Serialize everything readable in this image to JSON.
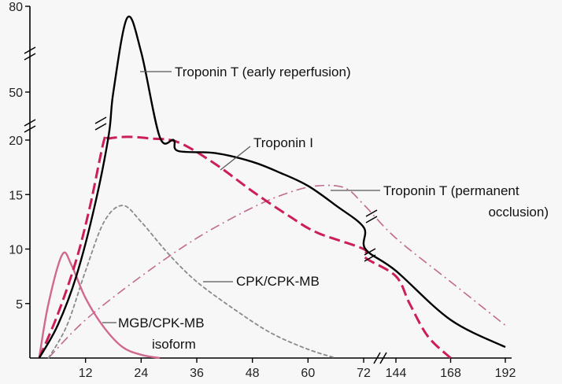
{
  "chart_data": {
    "type": "line",
    "title": "",
    "xlabel": "",
    "ylabel": "",
    "xlim": [
      0,
      192
    ],
    "ylim": [
      0,
      80
    ],
    "x_ticks": [
      "12",
      "24",
      "36",
      "48",
      "60",
      "72",
      "144",
      "168",
      "192"
    ],
    "y_ticks": [
      "5",
      "10",
      "15",
      "20",
      "50",
      "80"
    ],
    "grid": false,
    "legend": "inline callouts",
    "series": [
      {
        "name": "Troponin T (early reperfusion)",
        "name_lines": [
          "Troponin T (early reperfusion)"
        ],
        "style": "solid",
        "color": "#000000",
        "points": [
          [
            2,
            0
          ],
          [
            6,
            3
          ],
          [
            10,
            7.5
          ],
          [
            14,
            14
          ],
          [
            17,
            23
          ],
          [
            18,
            50
          ],
          [
            21,
            76
          ],
          [
            24,
            64
          ],
          [
            28,
            22
          ],
          [
            31,
            20
          ],
          [
            32,
            19
          ],
          [
            40,
            18.8
          ],
          [
            48,
            18
          ],
          [
            54,
            17
          ],
          [
            60,
            15.8
          ],
          [
            66,
            14
          ],
          [
            72,
            12
          ],
          [
            76,
            10
          ],
          [
            144,
            8
          ],
          [
            168,
            3.5
          ],
          [
            192,
            1
          ]
        ]
      },
      {
        "name": "Troponin I",
        "name_lines": [
          "Troponin I"
        ],
        "style": "dashed",
        "color": "#cc1f5a",
        "points": [
          [
            2,
            0
          ],
          [
            6,
            4
          ],
          [
            10,
            9
          ],
          [
            13,
            14
          ],
          [
            16,
            20
          ],
          [
            17,
            21
          ],
          [
            21,
            22
          ],
          [
            26,
            21
          ],
          [
            32,
            19.8
          ],
          [
            40,
            17.8
          ],
          [
            48,
            15.3
          ],
          [
            56,
            13
          ],
          [
            62,
            11.5
          ],
          [
            72,
            10
          ],
          [
            76,
            9.2
          ],
          [
            144,
            7.5
          ],
          [
            150,
            5
          ],
          [
            158,
            2
          ],
          [
            168,
            0
          ]
        ]
      },
      {
        "name": "Troponin T (permanent occlusion)",
        "name_lines": [
          "Troponin T (permanent",
          "occlusion)"
        ],
        "style": "dashdot",
        "color": "#c06a8e",
        "points": [
          [
            4,
            0
          ],
          [
            12,
            3.5
          ],
          [
            24,
            7.5
          ],
          [
            36,
            11
          ],
          [
            48,
            13.8
          ],
          [
            56,
            15.2
          ],
          [
            62,
            15.8
          ],
          [
            68,
            15.6
          ],
          [
            74,
            14
          ],
          [
            144,
            11
          ],
          [
            168,
            7
          ],
          [
            192,
            3
          ]
        ]
      },
      {
        "name": "CPK/CPK-MB",
        "name_lines": [
          "CPK/CPK-MB"
        ],
        "style": "dotted",
        "color": "#8a8a8a",
        "points": [
          [
            4,
            0
          ],
          [
            8,
            3
          ],
          [
            12,
            8
          ],
          [
            16,
            12.5
          ],
          [
            20,
            14
          ],
          [
            24,
            12.5
          ],
          [
            30,
            9.5
          ],
          [
            36,
            7
          ],
          [
            44,
            4.5
          ],
          [
            52,
            2.3
          ],
          [
            60,
            0.8
          ],
          [
            66,
            0
          ]
        ]
      },
      {
        "name": "MGB/CPK-MB isoform",
        "name_lines": [
          "MGB/CPK-MB",
          "isoform"
        ],
        "style": "solid",
        "color": "#d06890",
        "points": [
          [
            2,
            0
          ],
          [
            4,
            5
          ],
          [
            7,
            9.5
          ],
          [
            9,
            8.5
          ],
          [
            12,
            5.5
          ],
          [
            16,
            2.8
          ],
          [
            20,
            1
          ],
          [
            24,
            0.3
          ],
          [
            28,
            0
          ]
        ]
      }
    ]
  }
}
